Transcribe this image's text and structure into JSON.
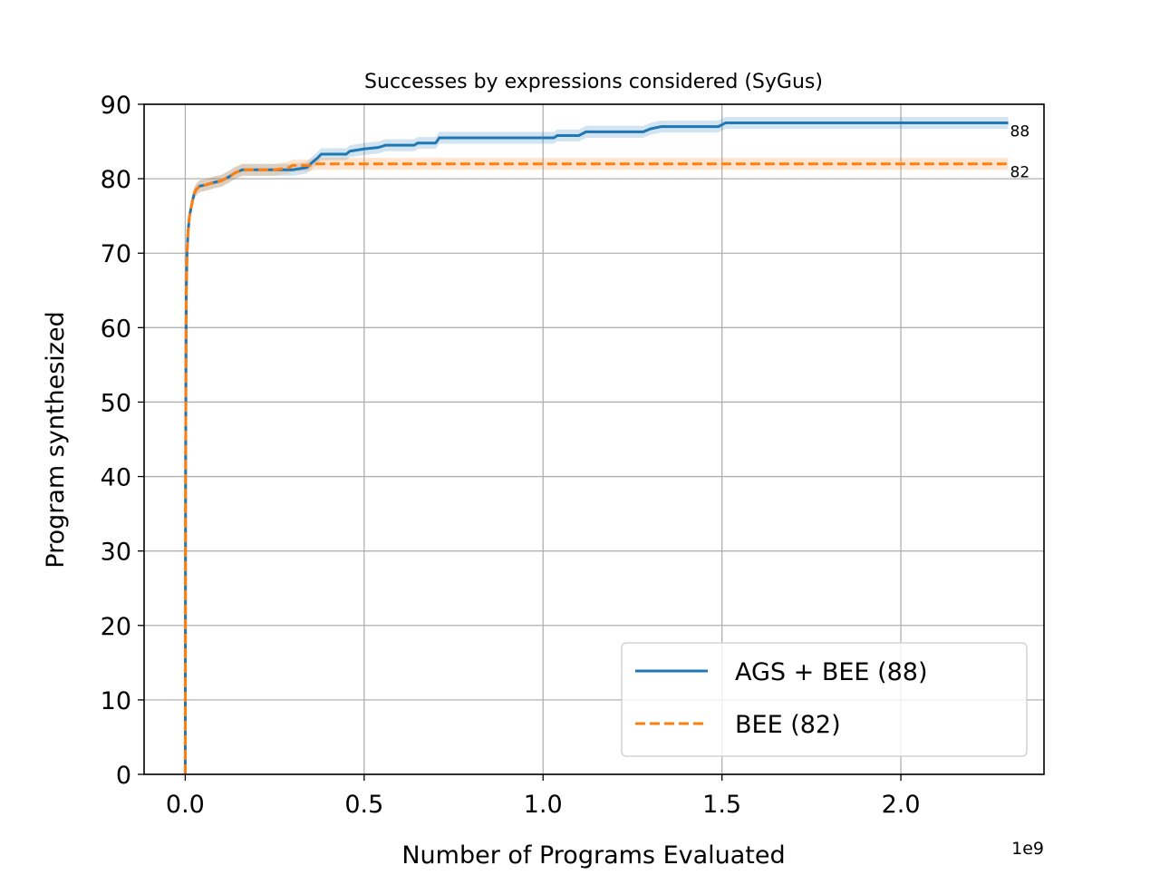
{
  "chart_data": {
    "type": "line",
    "title": "Successes by expressions considered (SyGus)",
    "xlabel": "Number of Programs Evaluated",
    "ylabel": "Program synthesized",
    "x_offset_text": "1e9",
    "xlim": [
      -0.115,
      2.4
    ],
    "ylim": [
      0,
      90
    ],
    "xticks": [
      0.0,
      0.5,
      1.0,
      1.5,
      2.0
    ],
    "xtick_labels": [
      "0.0",
      "0.5",
      "1.0",
      "1.5",
      "2.0"
    ],
    "yticks": [
      0,
      10,
      20,
      30,
      40,
      50,
      60,
      70,
      80,
      90
    ],
    "ytick_labels": [
      "0",
      "10",
      "20",
      "30",
      "40",
      "50",
      "60",
      "70",
      "80",
      "90"
    ],
    "grid": true,
    "legend_position": "lower-right",
    "series": [
      {
        "name": "AGS + BEE (88)",
        "color": "#1f77b4",
        "style": "solid",
        "end_label": "88",
        "band_halfwidth": 0.8,
        "points": [
          [
            0.0,
            0
          ],
          [
            0.001,
            40
          ],
          [
            0.002,
            55
          ],
          [
            0.003,
            65
          ],
          [
            0.005,
            70
          ],
          [
            0.008,
            73
          ],
          [
            0.012,
            75
          ],
          [
            0.016,
            76
          ],
          [
            0.02,
            77
          ],
          [
            0.025,
            78
          ],
          [
            0.03,
            78.5
          ],
          [
            0.04,
            79
          ],
          [
            0.06,
            79.2
          ],
          [
            0.08,
            79.5
          ],
          [
            0.1,
            79.7
          ],
          [
            0.12,
            80.2
          ],
          [
            0.14,
            80.8
          ],
          [
            0.16,
            81.2
          ],
          [
            0.2,
            81.2
          ],
          [
            0.25,
            81.2
          ],
          [
            0.3,
            81.2
          ],
          [
            0.34,
            81.5
          ],
          [
            0.355,
            82.2
          ],
          [
            0.37,
            82.8
          ],
          [
            0.38,
            83.3
          ],
          [
            0.45,
            83.3
          ],
          [
            0.46,
            83.7
          ],
          [
            0.5,
            84.0
          ],
          [
            0.54,
            84.2
          ],
          [
            0.56,
            84.5
          ],
          [
            0.64,
            84.5
          ],
          [
            0.65,
            84.8
          ],
          [
            0.7,
            84.8
          ],
          [
            0.71,
            85.5
          ],
          [
            1.03,
            85.5
          ],
          [
            1.04,
            85.8
          ],
          [
            1.1,
            85.8
          ],
          [
            1.12,
            86.3
          ],
          [
            1.28,
            86.3
          ],
          [
            1.3,
            86.7
          ],
          [
            1.33,
            87.0
          ],
          [
            1.49,
            87.0
          ],
          [
            1.51,
            87.5
          ],
          [
            2.3,
            87.5
          ]
        ]
      },
      {
        "name": "BEE (82)",
        "color": "#ff7f0e",
        "style": "dashed",
        "end_label": "82",
        "band_halfwidth": 0.8,
        "points": [
          [
            0.0,
            0
          ],
          [
            0.001,
            40
          ],
          [
            0.002,
            55
          ],
          [
            0.003,
            65
          ],
          [
            0.005,
            70
          ],
          [
            0.008,
            73
          ],
          [
            0.012,
            75
          ],
          [
            0.016,
            76
          ],
          [
            0.02,
            77
          ],
          [
            0.025,
            78
          ],
          [
            0.03,
            78.5
          ],
          [
            0.04,
            79
          ],
          [
            0.06,
            79.2
          ],
          [
            0.08,
            79.5
          ],
          [
            0.1,
            79.7
          ],
          [
            0.12,
            80.2
          ],
          [
            0.14,
            80.8
          ],
          [
            0.16,
            81.2
          ],
          [
            0.2,
            81.2
          ],
          [
            0.25,
            81.2
          ],
          [
            0.29,
            81.5
          ],
          [
            0.3,
            81.8
          ],
          [
            0.35,
            81.8
          ],
          [
            0.36,
            82.0
          ],
          [
            2.3,
            82.0
          ]
        ]
      }
    ]
  }
}
